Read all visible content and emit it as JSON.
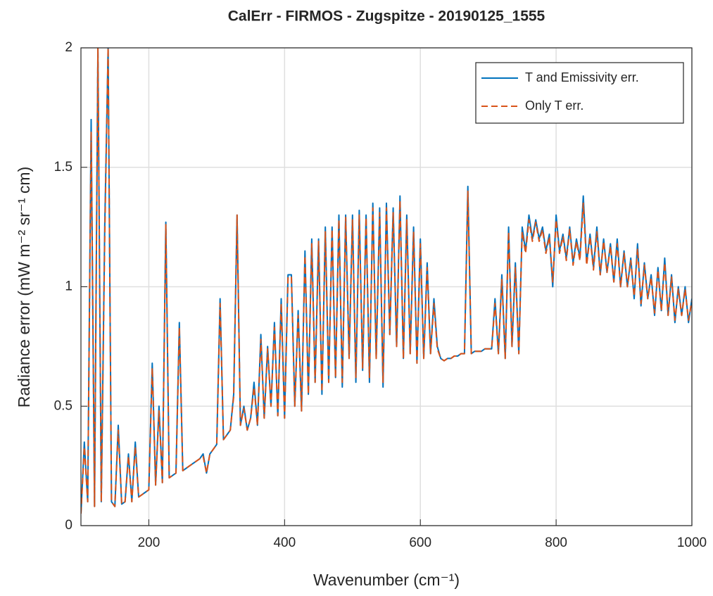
{
  "chart_data": {
    "type": "line",
    "title": "CalErr - FIRMOS - Zugspitze - 20190125_1555",
    "xlabel": "Wavenumber (cm⁻¹)",
    "ylabel": "Radiance error (mW m⁻² sr⁻¹ cm)",
    "x": [
      100,
      105,
      110,
      115,
      120,
      125,
      130,
      135,
      140,
      145,
      150,
      155,
      160,
      165,
      170,
      175,
      180,
      185,
      190,
      195,
      200,
      205,
      210,
      215,
      220,
      225,
      230,
      235,
      240,
      245,
      250,
      255,
      260,
      265,
      270,
      275,
      280,
      285,
      290,
      295,
      300,
      305,
      310,
      315,
      320,
      325,
      330,
      335,
      340,
      345,
      350,
      355,
      360,
      365,
      370,
      375,
      380,
      385,
      390,
      395,
      400,
      405,
      410,
      415,
      420,
      425,
      430,
      435,
      440,
      445,
      450,
      455,
      460,
      465,
      470,
      475,
      480,
      485,
      490,
      495,
      500,
      505,
      510,
      515,
      520,
      525,
      530,
      535,
      540,
      545,
      550,
      555,
      560,
      565,
      570,
      575,
      580,
      585,
      590,
      595,
      600,
      605,
      610,
      615,
      620,
      625,
      630,
      635,
      640,
      645,
      650,
      655,
      660,
      665,
      670,
      675,
      680,
      685,
      690,
      695,
      700,
      705,
      710,
      715,
      720,
      725,
      730,
      735,
      740,
      745,
      750,
      755,
      760,
      765,
      770,
      775,
      780,
      785,
      790,
      795,
      800,
      805,
      810,
      815,
      820,
      825,
      830,
      835,
      840,
      845,
      850,
      855,
      860,
      865,
      870,
      875,
      880,
      885,
      890,
      895,
      900,
      905,
      910,
      915,
      920,
      925,
      930,
      935,
      940,
      945,
      950,
      955,
      960,
      965,
      970,
      975,
      980,
      985,
      990,
      995,
      1000
    ],
    "series": [
      {
        "name": "T and Emissivity err.",
        "color": "#0072bd",
        "dash": false,
        "values": [
          0.05,
          0.35,
          0.1,
          1.7,
          0.08,
          2.0,
          0.1,
          1.25,
          2.0,
          0.1,
          0.08,
          0.42,
          0.09,
          0.1,
          0.3,
          0.1,
          0.35,
          0.12,
          0.13,
          0.14,
          0.15,
          0.68,
          0.17,
          0.5,
          0.18,
          1.27,
          0.2,
          0.21,
          0.22,
          0.85,
          0.23,
          0.24,
          0.25,
          0.26,
          0.27,
          0.28,
          0.3,
          0.22,
          0.3,
          0.32,
          0.34,
          0.95,
          0.36,
          0.38,
          0.4,
          0.55,
          1.3,
          0.42,
          0.5,
          0.4,
          0.45,
          0.6,
          0.42,
          0.8,
          0.45,
          0.75,
          0.5,
          0.85,
          0.46,
          0.95,
          0.45,
          1.05,
          1.05,
          0.5,
          0.9,
          0.48,
          1.15,
          0.55,
          1.2,
          0.6,
          1.2,
          0.55,
          1.25,
          0.6,
          1.25,
          0.62,
          1.3,
          0.58,
          1.3,
          0.7,
          1.3,
          0.6,
          1.32,
          0.65,
          1.3,
          0.6,
          1.35,
          0.7,
          1.33,
          0.58,
          1.35,
          0.8,
          1.33,
          0.75,
          1.38,
          0.7,
          1.3,
          0.72,
          1.25,
          0.68,
          1.2,
          0.7,
          1.1,
          0.72,
          0.95,
          0.75,
          0.7,
          0.69,
          0.7,
          0.7,
          0.71,
          0.71,
          0.72,
          0.72,
          1.42,
          0.72,
          0.73,
          0.73,
          0.73,
          0.74,
          0.74,
          0.74,
          0.95,
          0.72,
          1.05,
          0.7,
          1.25,
          0.75,
          1.1,
          0.72,
          1.25,
          1.15,
          1.3,
          1.2,
          1.28,
          1.2,
          1.25,
          1.15,
          1.22,
          1.0,
          1.3,
          1.15,
          1.22,
          1.12,
          1.25,
          1.1,
          1.2,
          1.12,
          1.38,
          1.1,
          1.22,
          1.08,
          1.25,
          1.05,
          1.2,
          1.06,
          1.18,
          1.02,
          1.2,
          1.0,
          1.15,
          1.0,
          1.12,
          0.95,
          1.18,
          0.92,
          1.1,
          0.95,
          1.05,
          0.88,
          1.08,
          0.9,
          1.12,
          0.88,
          1.05,
          0.85,
          1.0,
          0.88,
          1.0,
          0.85,
          0.95
        ]
      },
      {
        "name": "Only T err.",
        "color": "#d95319",
        "dash": true,
        "values": [
          0.05,
          0.33,
          0.1,
          1.65,
          0.08,
          2.0,
          0.1,
          1.2,
          2.0,
          0.1,
          0.08,
          0.4,
          0.09,
          0.1,
          0.29,
          0.1,
          0.33,
          0.12,
          0.13,
          0.14,
          0.15,
          0.66,
          0.17,
          0.48,
          0.18,
          1.26,
          0.2,
          0.21,
          0.22,
          0.83,
          0.23,
          0.24,
          0.25,
          0.26,
          0.27,
          0.28,
          0.29,
          0.22,
          0.3,
          0.32,
          0.34,
          0.93,
          0.36,
          0.38,
          0.4,
          0.54,
          1.3,
          0.42,
          0.49,
          0.4,
          0.45,
          0.58,
          0.42,
          0.78,
          0.45,
          0.74,
          0.5,
          0.83,
          0.46,
          0.93,
          0.45,
          1.04,
          1.04,
          0.5,
          0.88,
          0.48,
          1.13,
          0.55,
          1.18,
          0.6,
          1.19,
          0.56,
          1.23,
          0.6,
          1.24,
          0.62,
          1.28,
          0.6,
          1.29,
          0.7,
          1.28,
          0.62,
          1.3,
          0.66,
          1.29,
          0.62,
          1.33,
          0.7,
          1.31,
          0.6,
          1.33,
          0.8,
          1.31,
          0.75,
          1.36,
          0.7,
          1.28,
          0.72,
          1.23,
          0.68,
          1.18,
          0.7,
          1.08,
          0.72,
          0.93,
          0.74,
          0.7,
          0.69,
          0.7,
          0.7,
          0.71,
          0.71,
          0.72,
          0.72,
          1.4,
          0.72,
          0.73,
          0.73,
          0.73,
          0.74,
          0.74,
          0.74,
          0.93,
          0.72,
          1.03,
          0.7,
          1.23,
          0.75,
          1.08,
          0.72,
          1.23,
          1.14,
          1.28,
          1.19,
          1.27,
          1.19,
          1.24,
          1.14,
          1.21,
          1.02,
          1.28,
          1.14,
          1.21,
          1.11,
          1.24,
          1.09,
          1.19,
          1.11,
          1.35,
          1.09,
          1.21,
          1.07,
          1.23,
          1.05,
          1.19,
          1.06,
          1.17,
          1.02,
          1.18,
          1.0,
          1.14,
          1.0,
          1.11,
          0.96,
          1.16,
          0.93,
          1.09,
          0.95,
          1.04,
          0.89,
          1.07,
          0.9,
          1.1,
          0.88,
          1.04,
          0.86,
          0.99,
          0.88,
          0.99,
          0.86,
          0.94
        ]
      }
    ],
    "xlim": [
      100,
      1000
    ],
    "xticks": [
      200,
      400,
      600,
      800,
      1000
    ],
    "ylim": [
      0,
      2
    ],
    "yticks": [
      0,
      0.5,
      1,
      1.5,
      2
    ],
    "grid": true,
    "legend": "top-right"
  }
}
